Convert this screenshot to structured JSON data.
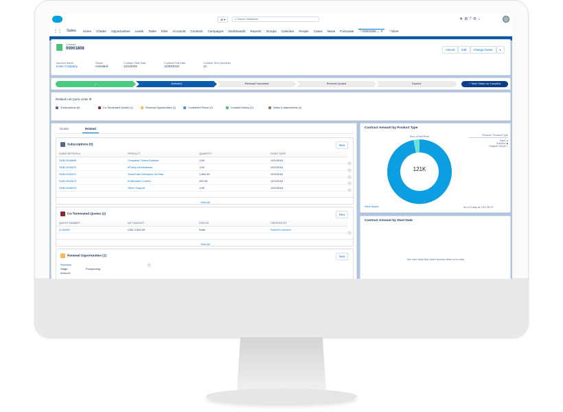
{
  "header": {
    "search_scope": "All",
    "search_placeholder": "Search Salesforce",
    "more": "More"
  },
  "nav": {
    "app": "Sales",
    "items": [
      "Home",
      "Chatter",
      "Opportunities",
      "Leads",
      "Tasks",
      "Files",
      "Accounts",
      "Contacts",
      "Campaigns",
      "Dashboards",
      "Reports",
      "Groups",
      "Calendar",
      "People",
      "Cases",
      "News",
      "Forecasts"
    ],
    "active_tab": "* 00001808",
    "more": "* More"
  },
  "record": {
    "type": "Contract",
    "number": "00001808",
    "buttons": [
      "Amend",
      "Edit",
      "Change Owner"
    ],
    "fields": [
      {
        "label": "Account Name",
        "value": "Irvine Company",
        "link": true
      },
      {
        "label": "Status",
        "value": "Activated"
      },
      {
        "label": "Contract Start Date",
        "value": "12/1/2018"
      },
      {
        "label": "Contract End Date",
        "value": "11/30/2019"
      },
      {
        "label": "Contract Term (months)",
        "value": "12"
      }
    ]
  },
  "path": {
    "steps": [
      "✓",
      "Activated",
      "Renewal Forecasted",
      "Renewal Quoted",
      "Expired"
    ],
    "current": 1,
    "button": "✓ Mark Status as Complete"
  },
  "quick_links": {
    "title": "Related List Quick Links",
    "items": [
      {
        "label": "Subscriptions (5)",
        "color": "#54698d"
      },
      {
        "label": "Co-Terminated Quotes (1)",
        "color": "#8b2a2a"
      },
      {
        "label": "Renewal Opportunities (1)",
        "color": "#fcb95b"
      },
      {
        "label": "Contracted Prices (0)",
        "color": "#4d8fda"
      },
      {
        "label": "Contract History (0)",
        "color": "#4bc076"
      },
      {
        "label": "Notes & Attachments (0)",
        "color": "#a07960"
      }
    ]
  },
  "tabs": [
    "Details",
    "Related"
  ],
  "active_tab": 1,
  "subscriptions": {
    "title": "Subscriptions (5)",
    "new": "New",
    "columns": [
      "SUBSCRIPTION #",
      "PRODUCT",
      "QUANTITY",
      "START DATE"
    ],
    "rows": [
      [
        "SUB-0016669",
        "Complete Threat Solution",
        "1.00",
        "12/1/2018"
      ],
      [
        "SUB-0016670",
        "ePolicy Orchestrator",
        "1.00",
        "12/1/2018"
      ],
      [
        "SUB-0016671",
        "VirusScan Enterprise for Mac",
        "1,892.00",
        "12/1/2018"
      ],
      [
        "SUB-0016672",
        "Embedded Control",
        "200.00",
        "12/1/2018"
      ],
      [
        "SUB-0016673",
        "Silver Support",
        "1.00",
        "12/1/2018"
      ]
    ],
    "view_all": "View All"
  },
  "quotes": {
    "title": "Co-Terminated Quotes (1)",
    "new": "New",
    "columns": [
      "QUOTE NUMBER",
      "NET AMOUNT",
      "STATUS",
      "CREATED BY"
    ],
    "rows": [
      [
        "Q-05265",
        "USD 3,503.09",
        "Draft",
        "Robert Lorenzen"
      ]
    ],
    "view_all": "View All"
  },
  "renewals": {
    "title": "Renewal Opportunities (1)",
    "new": "New",
    "item": "Renewal",
    "stage_label": "Stage:",
    "stage": "Prospecting",
    "amount_label": "Amount:"
  },
  "chart_data": {
    "type": "pie",
    "title": "Contract Amount by Product Type",
    "subtitle": "Sum of Net Price",
    "center_label": "121K",
    "legend_title": "Product: Product Type",
    "legend_placement": "top-right",
    "series": [
      {
        "name": "SaaS",
        "value": 0.97,
        "color": "#0b9ee0"
      },
      {
        "name": "Solution",
        "value": 0,
        "color": "#0a1f44"
      },
      {
        "name": "Support Hours",
        "value": 0.03,
        "color": "#6fe0d8"
      }
    ],
    "view_report": "View Report",
    "timestamp": "As of Today at 1:52 PM"
  },
  "chart2": {
    "title": "Contract Amount by Start Date",
    "empty": "We can't draw this chart because there is no data."
  }
}
